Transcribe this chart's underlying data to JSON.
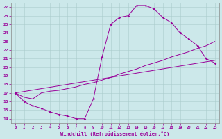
{
  "xlabel": "Windchill (Refroidissement éolien,°C)",
  "bg_color": "#cce8ea",
  "line_color": "#990099",
  "xlim": [
    -0.5,
    23.5
  ],
  "ylim": [
    13.5,
    27.5
  ],
  "xticks": [
    0,
    1,
    2,
    3,
    4,
    5,
    6,
    7,
    8,
    9,
    10,
    11,
    12,
    13,
    14,
    15,
    16,
    17,
    18,
    19,
    20,
    21,
    22,
    23
  ],
  "yticks": [
    14,
    15,
    16,
    17,
    18,
    19,
    20,
    21,
    22,
    23,
    24,
    25,
    26,
    27
  ],
  "curve1_x": [
    0,
    1,
    2,
    3,
    4,
    5,
    6,
    7,
    8,
    9,
    10,
    11,
    12,
    13,
    14,
    15,
    16,
    17,
    18,
    19,
    20,
    21,
    22,
    23
  ],
  "curve1_y": [
    17,
    16,
    15.5,
    15.2,
    14.8,
    14.5,
    14.3,
    14.0,
    14.0,
    16.3,
    21.2,
    25.0,
    25.8,
    26.0,
    27.2,
    27.2,
    26.8,
    25.8,
    25.2,
    24.0,
    23.3,
    22.5,
    21.0,
    20.5
  ],
  "curve2_x": [
    0,
    1,
    2,
    3,
    4,
    5,
    6,
    7,
    8,
    9,
    10,
    11,
    12,
    13,
    14,
    15,
    16,
    17,
    18,
    19,
    20,
    21,
    22,
    23
  ],
  "curve2_y": [
    17,
    16.5,
    16.3,
    17.0,
    17.2,
    17.3,
    17.5,
    17.7,
    18.0,
    18.2,
    18.5,
    18.8,
    19.2,
    19.5,
    19.8,
    20.2,
    20.5,
    20.8,
    21.2,
    21.5,
    21.8,
    22.2,
    22.5,
    23.0
  ],
  "curve3_x": [
    0,
    23
  ],
  "curve3_y": [
    17.0,
    20.8
  ]
}
